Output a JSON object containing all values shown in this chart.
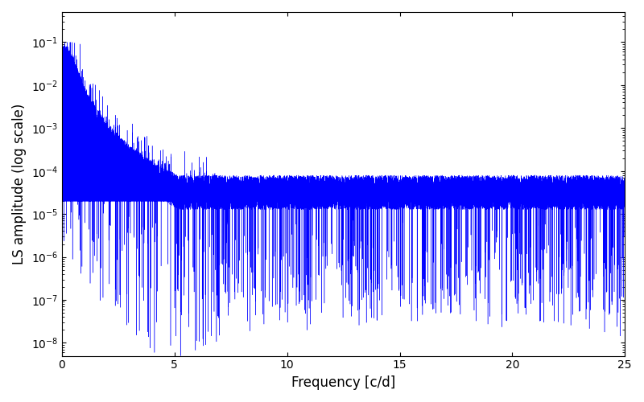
{
  "xlabel": "Frequency [c/d]",
  "ylabel": "LS amplitude (log scale)",
  "color": "#0000ff",
  "xlim": [
    0,
    25
  ],
  "ylim": [
    5e-09,
    0.5
  ],
  "yscale": "log",
  "figsize": [
    8.0,
    5.0
  ],
  "dpi": 100,
  "background_color": "#ffffff",
  "n_points": 15000,
  "freq_max": 25.0,
  "peak_amplitude": 0.09,
  "decay_scale": 0.5,
  "decay_exp": 3.0,
  "noise_floor_mid": 4e-05,
  "linewidth": 0.3,
  "seed": 7
}
